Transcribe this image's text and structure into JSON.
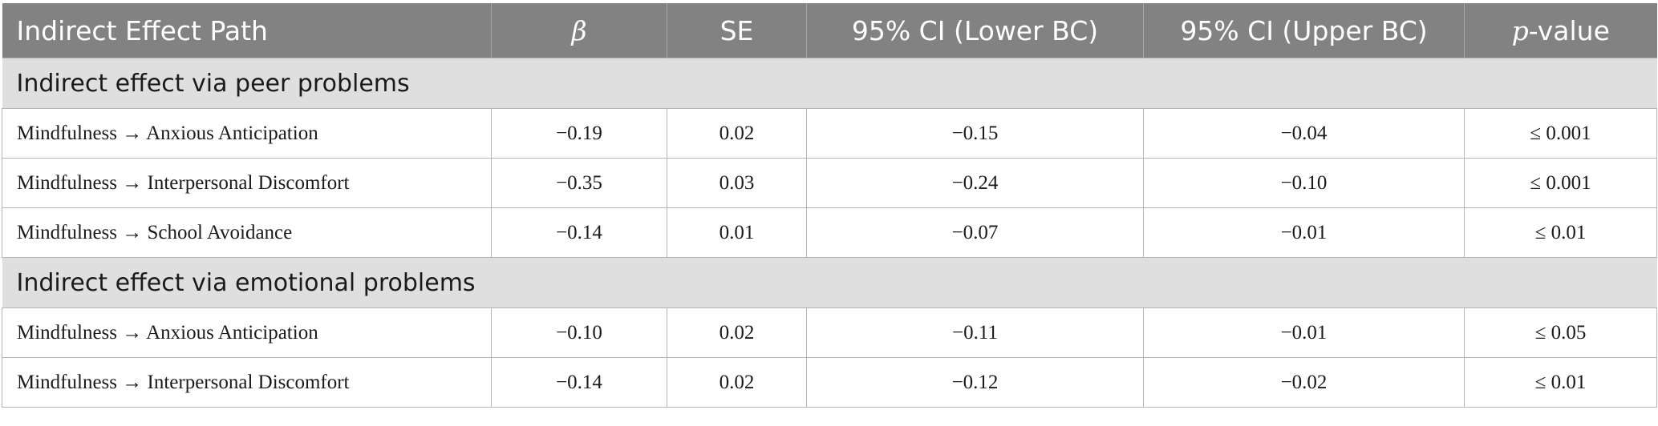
{
  "table": {
    "headers": {
      "path": "Indirect Effect Path",
      "beta": "β",
      "se": "SE",
      "ci_lower": "95% CI (Lower BC)",
      "ci_upper": "95% CI (Upper BC)",
      "p_prefix": "p",
      "p_suffix": "-value"
    },
    "sections": [
      {
        "title": "Indirect effect via peer problems",
        "rows": [
          {
            "path": "Mindfulness → Anxious Anticipation",
            "beta": "−0.19",
            "se": "0.02",
            "ci_lower": "−0.15",
            "ci_upper": "−0.04",
            "p": "≤ 0.001"
          },
          {
            "path": "Mindfulness → Interpersonal Discomfort",
            "beta": "−0.35",
            "se": "0.03",
            "ci_lower": "−0.24",
            "ci_upper": "−0.10",
            "p": "≤ 0.001"
          },
          {
            "path": "Mindfulness → School Avoidance",
            "beta": "−0.14",
            "se": "0.01",
            "ci_lower": "−0.07",
            "ci_upper": "−0.01",
            "p": "≤ 0.01"
          }
        ]
      },
      {
        "title": "Indirect effect via emotional problems",
        "rows": [
          {
            "path": "Mindfulness → Anxious Anticipation",
            "beta": "−0.10",
            "se": "0.02",
            "ci_lower": "−0.11",
            "ci_upper": "−0.01",
            "p": "≤ 0.05"
          },
          {
            "path": "Mindfulness → Interpersonal Discomfort",
            "beta": "−0.14",
            "se": "0.02",
            "ci_lower": "−0.12",
            "ci_upper": "−0.02",
            "p": "≤ 0.01"
          }
        ]
      }
    ]
  },
  "colors": {
    "header_bg": "#818281",
    "section_bg": "#e0dfe0",
    "border": "#b5b5b5"
  }
}
